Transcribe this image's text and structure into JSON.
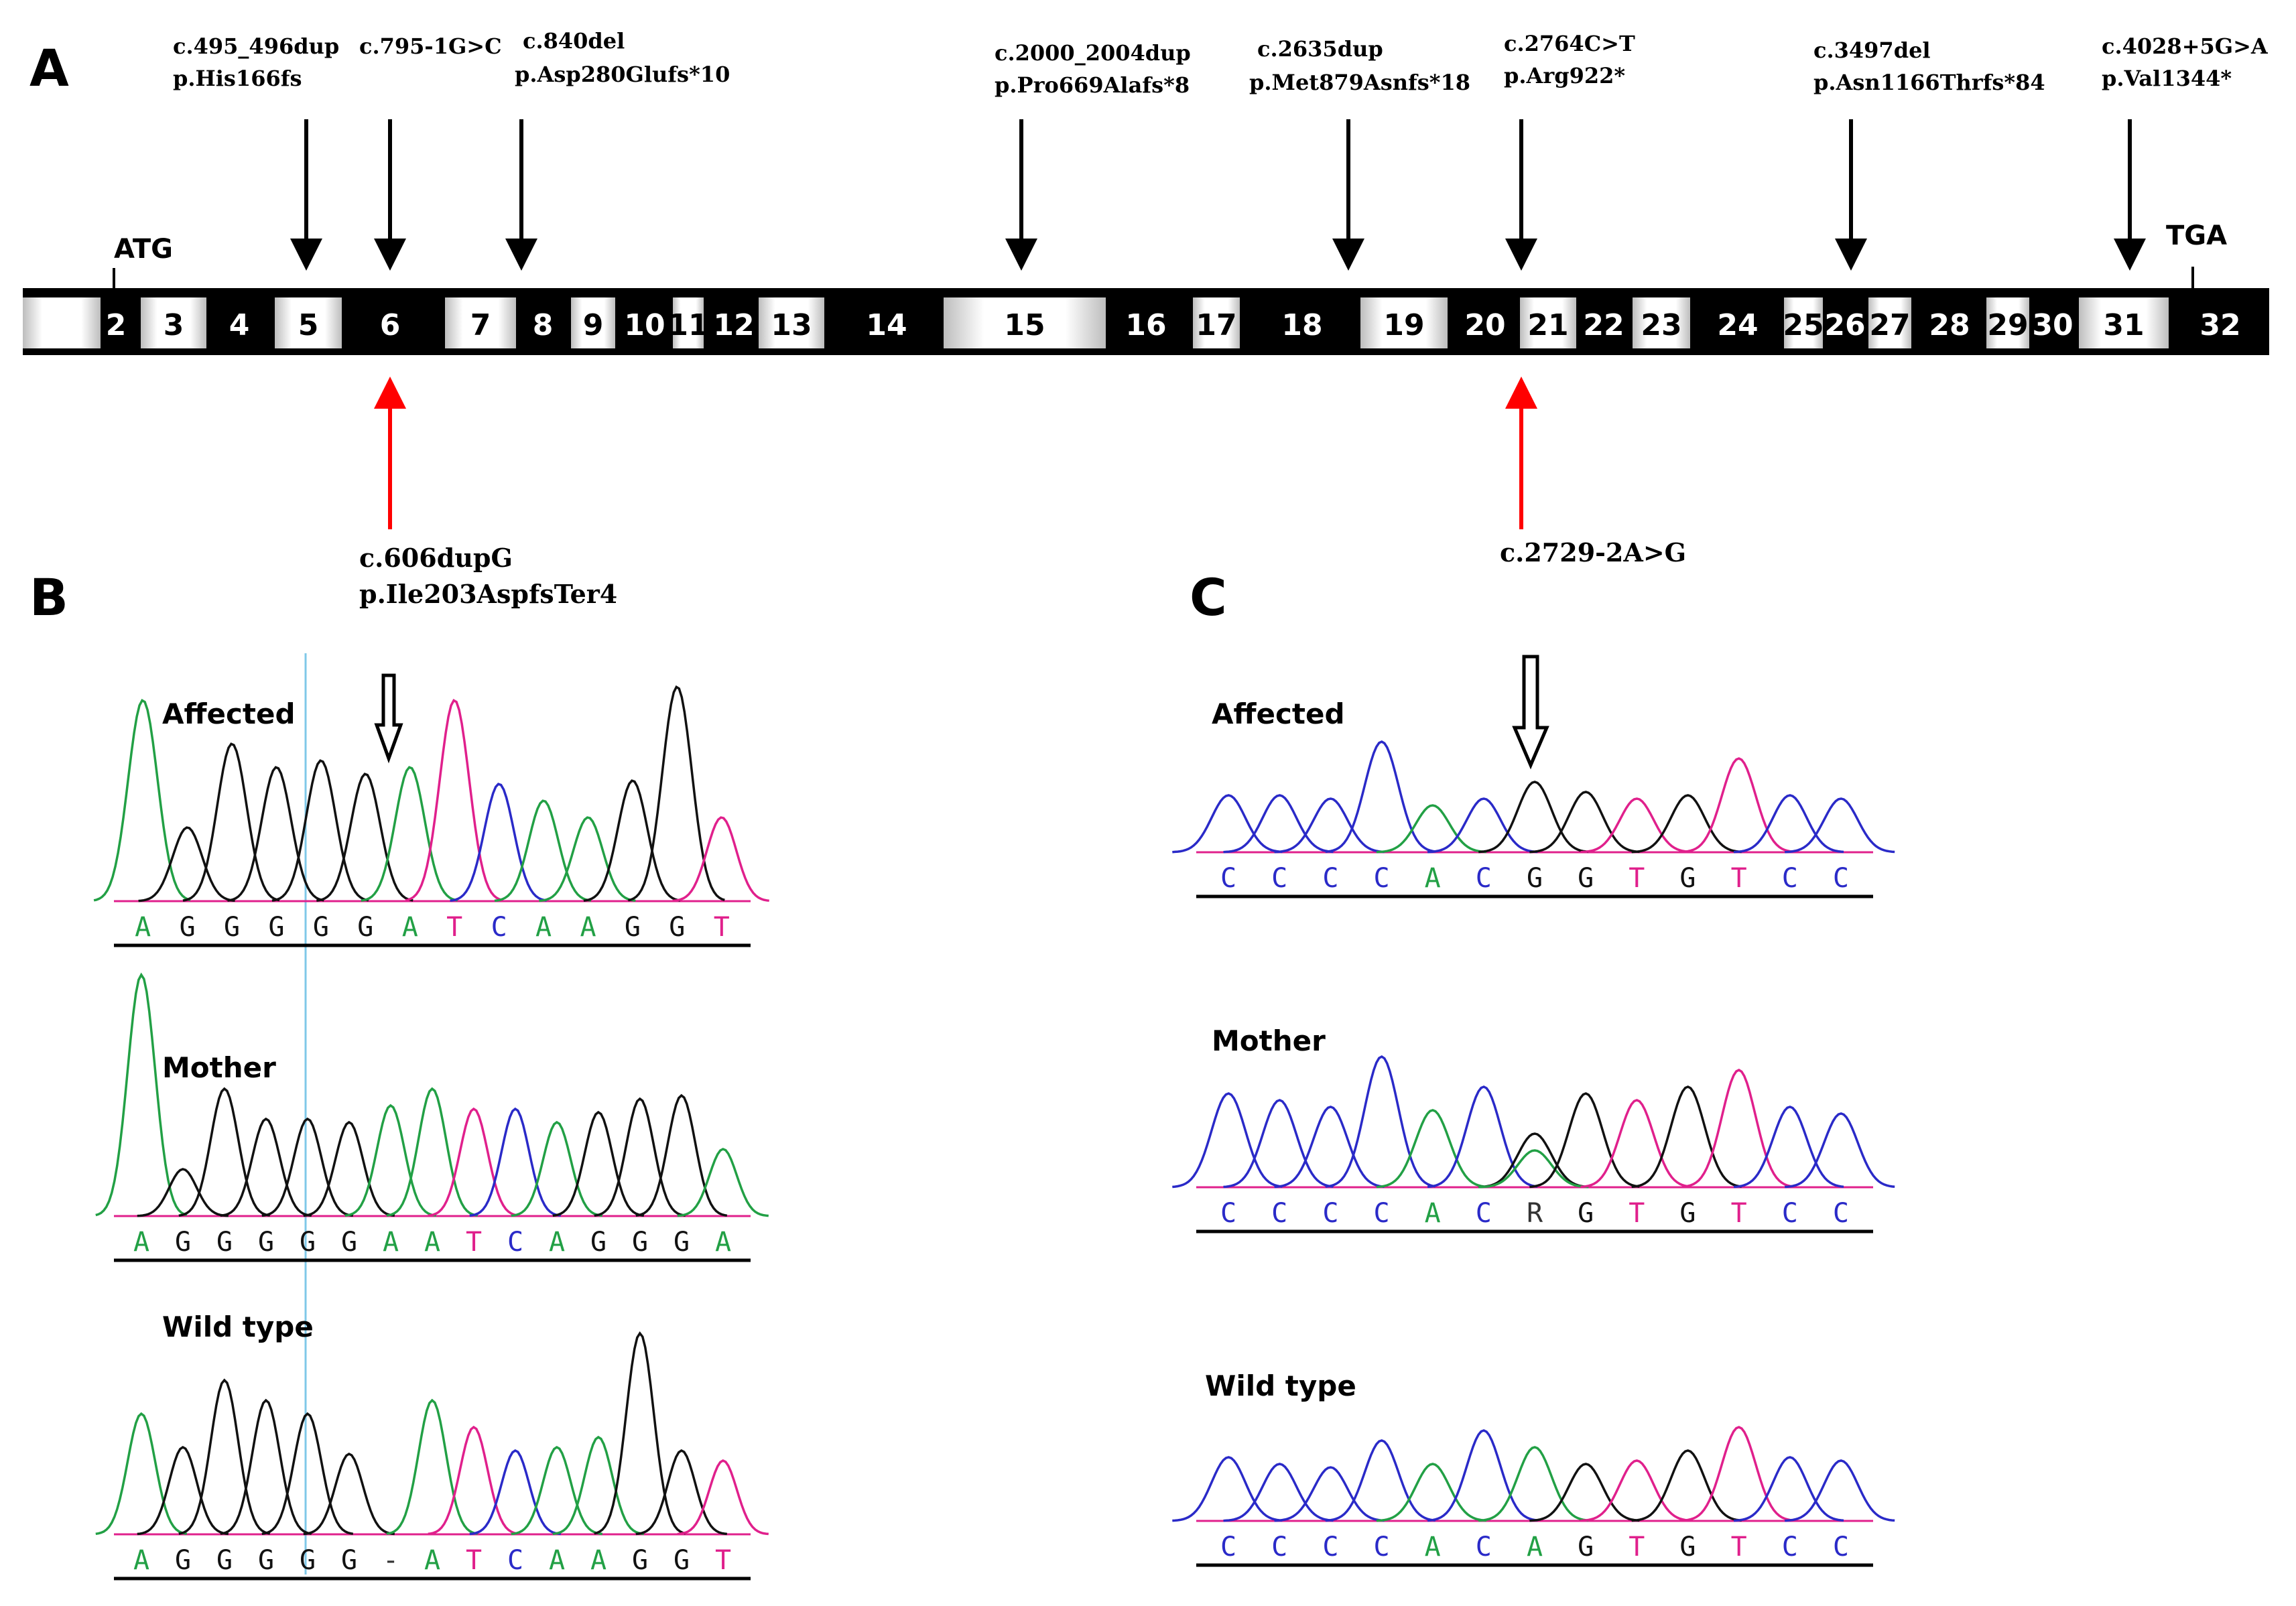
{
  "panels": {
    "a": "A",
    "b": "B",
    "c": "C"
  },
  "gene": {
    "start_codon": "ATG",
    "stop_codon": "TGA"
  },
  "exons": [
    {
      "label": "",
      "style": "white"
    },
    {
      "label": "2",
      "style": "black"
    },
    {
      "label": "3",
      "style": "white"
    },
    {
      "label": "4",
      "style": "black"
    },
    {
      "label": "5",
      "style": "white"
    },
    {
      "label": "6",
      "style": "black"
    },
    {
      "label": "7",
      "style": "white"
    },
    {
      "label": "8",
      "style": "black"
    },
    {
      "label": "9",
      "style": "white"
    },
    {
      "label": "10",
      "style": "black"
    },
    {
      "label": "11",
      "style": "white"
    },
    {
      "label": "12",
      "style": "black"
    },
    {
      "label": "13",
      "style": "white"
    },
    {
      "label": "14",
      "style": "black"
    },
    {
      "label": "15",
      "style": "white"
    },
    {
      "label": "16",
      "style": "black"
    },
    {
      "label": "17",
      "style": "white"
    },
    {
      "label": "18",
      "style": "black"
    },
    {
      "label": "19",
      "style": "white"
    },
    {
      "label": "20",
      "style": "black"
    },
    {
      "label": "21",
      "style": "white"
    },
    {
      "label": "22",
      "style": "black"
    },
    {
      "label": "23",
      "style": "white"
    },
    {
      "label": "24",
      "style": "black"
    },
    {
      "label": "25",
      "style": "white"
    },
    {
      "label": "26",
      "style": "black"
    },
    {
      "label": "27",
      "style": "white"
    },
    {
      "label": "28",
      "style": "black"
    },
    {
      "label": "29",
      "style": "white"
    },
    {
      "label": "30",
      "style": "black"
    },
    {
      "label": "31",
      "style": "white"
    },
    {
      "label": "32",
      "style": "black"
    }
  ],
  "known_variants": [
    {
      "cdna": "c.495_496dup",
      "protein": "p.His166fs"
    },
    {
      "cdna": "c.795-1G>C",
      "protein": ""
    },
    {
      "cdna": "c.840del",
      "protein": "p.Asp280Glufs*10"
    },
    {
      "cdna": "c.2000_2004dup",
      "protein": "p.Pro669Alafs*8"
    },
    {
      "cdna": "c.2635dup",
      "protein": "p.Met879Asnfs*18"
    },
    {
      "cdna": "c.2764C>T",
      "protein": "p.Arg922*"
    },
    {
      "cdna": "c.3497del",
      "protein": "p.Asn1166Thrfs*84"
    },
    {
      "cdna": "c.4028+5G>A",
      "protein": "p.Val1344*"
    }
  ],
  "novel_variants": [
    {
      "cdna": "c.606dupG",
      "protein": "p.Ile203AspfsTer4"
    },
    {
      "cdna": "c.2729-2A>G",
      "protein": ""
    }
  ],
  "chromatograms_b": [
    {
      "label": "Affected",
      "bases": [
        "A",
        "G",
        "G",
        "G",
        "G",
        "G",
        "A",
        "T",
        "C",
        "A",
        "A",
        "G",
        "G",
        "T"
      ]
    },
    {
      "label": "Mother",
      "bases": [
        "A",
        "G",
        "G",
        "G",
        "G",
        "G",
        "A",
        "A",
        "T",
        "C",
        "A",
        "G",
        "G",
        "G",
        "A"
      ]
    },
    {
      "label": "Wild type",
      "bases": [
        "A",
        "G",
        "G",
        "G",
        "G",
        "G",
        "-",
        "A",
        "T",
        "C",
        "A",
        "A",
        "G",
        "G",
        "T"
      ]
    }
  ],
  "chromatograms_c": [
    {
      "label": "Affected",
      "bases": [
        "C",
        "C",
        "C",
        "C",
        "A",
        "C",
        "G",
        "G",
        "T",
        "G",
        "T",
        "C",
        "C"
      ]
    },
    {
      "label": "Mother",
      "bases": [
        "C",
        "C",
        "C",
        "C",
        "A",
        "C",
        "R",
        "G",
        "T",
        "G",
        "T",
        "C",
        "C"
      ]
    },
    {
      "label": "Wild type",
      "bases": [
        "C",
        "C",
        "C",
        "C",
        "A",
        "C",
        "A",
        "G",
        "T",
        "G",
        "T",
        "C",
        "C"
      ]
    }
  ],
  "colors": {
    "A": "#22a045",
    "C": "#2a2ac8",
    "G": "#111111",
    "T": "#e0208c",
    "novel_arrow": "#ff0000",
    "known_arrow": "#000000",
    "marker_line": "#7fc8e8"
  }
}
